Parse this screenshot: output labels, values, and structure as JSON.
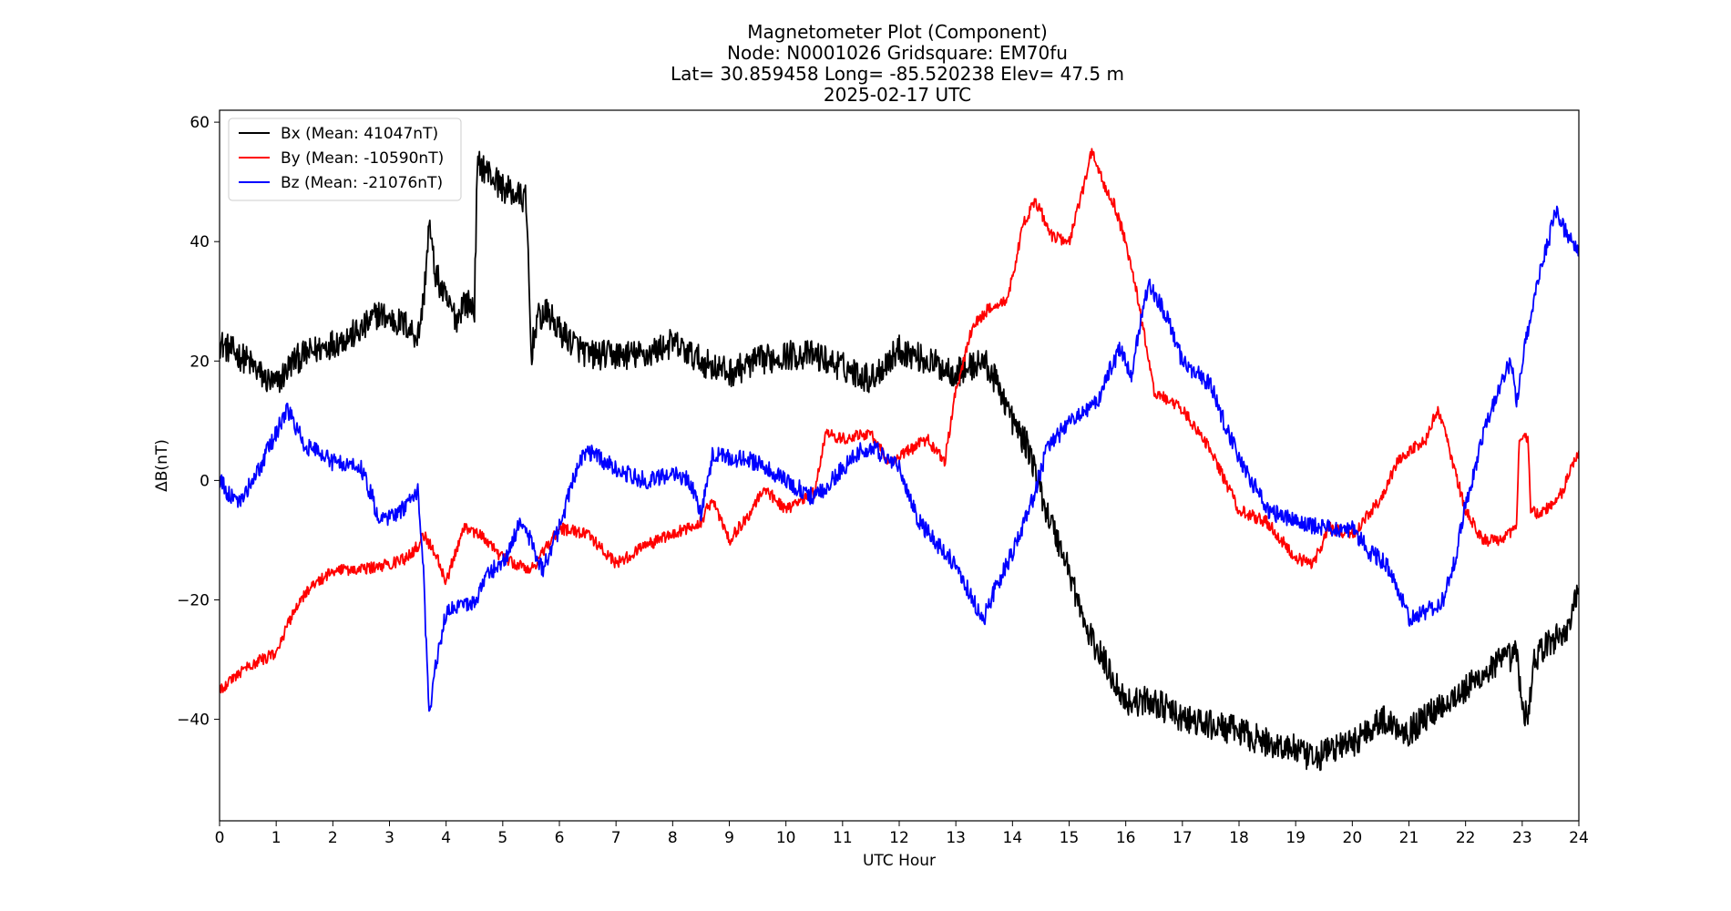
{
  "chart_data": {
    "type": "line",
    "title_lines": [
      "Magnetometer Plot (Component)",
      "Node:  N0001026     Gridsquare:  EM70fu",
      "Lat= 30.859458    Long= -85.520238    Elev= 47.5 m",
      "2025-02-17  UTC"
    ],
    "xlabel": "UTC Hour",
    "ylabel": "ΔB(nT)",
    "xlim": [
      0,
      24
    ],
    "ylim": [
      -57,
      62
    ],
    "x_ticks": [
      0,
      1,
      2,
      3,
      4,
      5,
      6,
      7,
      8,
      9,
      10,
      11,
      12,
      13,
      14,
      15,
      16,
      17,
      18,
      19,
      20,
      21,
      22,
      23,
      24
    ],
    "y_ticks": [
      60,
      40,
      20,
      0,
      -20,
      -40
    ],
    "y_tick_labels": [
      "60",
      "40",
      "20",
      "0",
      "−20",
      "−40"
    ],
    "grid": false,
    "legend_position": "top-left",
    "series": [
      {
        "name": "Bx (Mean: 41047nT)",
        "color": "#000000",
        "noise": 2.5,
        "points": [
          [
            0,
            23
          ],
          [
            0.5,
            20
          ],
          [
            0.8,
            17
          ],
          [
            1.0,
            16
          ],
          [
            1.3,
            20
          ],
          [
            1.5,
            21
          ],
          [
            2.0,
            23
          ],
          [
            2.5,
            25
          ],
          [
            2.8,
            28
          ],
          [
            3.0,
            27
          ],
          [
            3.3,
            26
          ],
          [
            3.5,
            24
          ],
          [
            3.6,
            30
          ],
          [
            3.7,
            43
          ],
          [
            3.8,
            35
          ],
          [
            4.0,
            30
          ],
          [
            4.2,
            27
          ],
          [
            4.3,
            30
          ],
          [
            4.5,
            29
          ],
          [
            4.55,
            52
          ],
          [
            4.6,
            53
          ],
          [
            5.0,
            49
          ],
          [
            5.4,
            47
          ],
          [
            5.45,
            38
          ],
          [
            5.5,
            21
          ],
          [
            5.6,
            27
          ],
          [
            5.8,
            28
          ],
          [
            6.0,
            25
          ],
          [
            6.5,
            21
          ],
          [
            7.0,
            21
          ],
          [
            7.5,
            21
          ],
          [
            8.0,
            23
          ],
          [
            8.5,
            20
          ],
          [
            9.0,
            18
          ],
          [
            9.5,
            20
          ],
          [
            10.0,
            21
          ],
          [
            10.5,
            21
          ],
          [
            11.0,
            19
          ],
          [
            11.5,
            17
          ],
          [
            12.0,
            22
          ],
          [
            12.5,
            20
          ],
          [
            13.0,
            18
          ],
          [
            13.5,
            20
          ],
          [
            13.8,
            15
          ],
          [
            14.0,
            10
          ],
          [
            14.3,
            5
          ],
          [
            14.6,
            -5
          ],
          [
            15.0,
            -15
          ],
          [
            15.3,
            -25
          ],
          [
            15.6,
            -30
          ],
          [
            16.0,
            -37
          ],
          [
            16.5,
            -37
          ],
          [
            17.0,
            -40
          ],
          [
            17.5,
            -41
          ],
          [
            18.0,
            -42
          ],
          [
            18.5,
            -44
          ],
          [
            19.0,
            -45
          ],
          [
            19.3,
            -47
          ],
          [
            19.6,
            -45
          ],
          [
            20.0,
            -44
          ],
          [
            20.5,
            -40
          ],
          [
            21.0,
            -42
          ],
          [
            21.5,
            -38
          ],
          [
            22.0,
            -35
          ],
          [
            22.5,
            -31
          ],
          [
            22.9,
            -29
          ],
          [
            23.0,
            -38
          ],
          [
            23.1,
            -40
          ],
          [
            23.2,
            -30
          ],
          [
            23.5,
            -27
          ],
          [
            23.8,
            -25
          ],
          [
            24.0,
            -18
          ]
        ]
      },
      {
        "name": "By (Mean: -10590nT)",
        "color": "#ff0000",
        "noise": 1.0,
        "points": [
          [
            0,
            -35
          ],
          [
            0.5,
            -31
          ],
          [
            1.0,
            -29
          ],
          [
            1.3,
            -22
          ],
          [
            1.5,
            -19
          ],
          [
            2.0,
            -15
          ],
          [
            2.5,
            -15
          ],
          [
            3.0,
            -14
          ],
          [
            3.3,
            -13
          ],
          [
            3.5,
            -11
          ],
          [
            3.6,
            -9
          ],
          [
            3.8,
            -12
          ],
          [
            4.0,
            -17
          ],
          [
            4.3,
            -8
          ],
          [
            4.6,
            -9
          ],
          [
            5.0,
            -13
          ],
          [
            5.5,
            -15
          ],
          [
            6.0,
            -8
          ],
          [
            6.5,
            -9
          ],
          [
            7.0,
            -14
          ],
          [
            7.5,
            -11
          ],
          [
            8.0,
            -9
          ],
          [
            8.5,
            -7
          ],
          [
            8.7,
            -3
          ],
          [
            9.0,
            -10
          ],
          [
            9.4,
            -5
          ],
          [
            9.6,
            -1
          ],
          [
            10.0,
            -5
          ],
          [
            10.5,
            -2
          ],
          [
            10.7,
            8
          ],
          [
            11.0,
            7
          ],
          [
            11.5,
            8
          ],
          [
            11.8,
            3
          ],
          [
            12.0,
            4
          ],
          [
            12.5,
            7
          ],
          [
            12.8,
            3
          ],
          [
            13.0,
            15
          ],
          [
            13.3,
            26
          ],
          [
            13.6,
            29
          ],
          [
            13.9,
            30
          ],
          [
            14.2,
            43
          ],
          [
            14.4,
            47
          ],
          [
            14.7,
            41
          ],
          [
            15.0,
            40
          ],
          [
            15.2,
            47
          ],
          [
            15.4,
            55
          ],
          [
            15.6,
            50
          ],
          [
            15.8,
            46
          ],
          [
            16.0,
            40
          ],
          [
            16.2,
            31
          ],
          [
            16.5,
            15
          ],
          [
            17.0,
            12
          ],
          [
            17.5,
            5
          ],
          [
            18.0,
            -5
          ],
          [
            18.5,
            -7
          ],
          [
            19.0,
            -13
          ],
          [
            19.3,
            -14
          ],
          [
            19.6,
            -8
          ],
          [
            20.0,
            -9
          ],
          [
            20.5,
            -3
          ],
          [
            20.8,
            3
          ],
          [
            21.0,
            5
          ],
          [
            21.3,
            7
          ],
          [
            21.5,
            12
          ],
          [
            21.7,
            6
          ],
          [
            21.8,
            2
          ],
          [
            22.0,
            -5
          ],
          [
            22.3,
            -10
          ],
          [
            22.6,
            -10
          ],
          [
            22.9,
            -8
          ],
          [
            22.95,
            7
          ],
          [
            23.1,
            7
          ],
          [
            23.15,
            -5
          ],
          [
            23.3,
            -6
          ],
          [
            23.7,
            -2
          ],
          [
            24.0,
            5
          ]
        ]
      },
      {
        "name": "Bz (Mean: -21076nT)",
        "color": "#0000ff",
        "noise": 1.5,
        "points": [
          [
            0,
            0
          ],
          [
            0.3,
            -4
          ],
          [
            0.6,
            0
          ],
          [
            0.9,
            6
          ],
          [
            1.2,
            12
          ],
          [
            1.5,
            6
          ],
          [
            2.0,
            3
          ],
          [
            2.5,
            2
          ],
          [
            2.7,
            -3
          ],
          [
            2.8,
            -7
          ],
          [
            3.2,
            -5
          ],
          [
            3.5,
            -2
          ],
          [
            3.6,
            -14
          ],
          [
            3.65,
            -28
          ],
          [
            3.7,
            -40
          ],
          [
            3.8,
            -32
          ],
          [
            4.0,
            -22
          ],
          [
            4.5,
            -20
          ],
          [
            4.8,
            -15
          ],
          [
            5.0,
            -14
          ],
          [
            5.3,
            -7
          ],
          [
            5.5,
            -10
          ],
          [
            5.7,
            -15
          ],
          [
            6.0,
            -8
          ],
          [
            6.3,
            2
          ],
          [
            6.5,
            5
          ],
          [
            7.0,
            2
          ],
          [
            7.5,
            0
          ],
          [
            8.0,
            1
          ],
          [
            8.3,
            0
          ],
          [
            8.5,
            -6
          ],
          [
            8.7,
            4
          ],
          [
            9.0,
            4
          ],
          [
            9.5,
            3
          ],
          [
            10.0,
            0
          ],
          [
            10.5,
            -3
          ],
          [
            11.0,
            2
          ],
          [
            11.3,
            5
          ],
          [
            11.6,
            5
          ],
          [
            12.0,
            2
          ],
          [
            12.3,
            -6
          ],
          [
            12.6,
            -10
          ],
          [
            13.0,
            -14
          ],
          [
            13.3,
            -20
          ],
          [
            13.5,
            -23
          ],
          [
            13.7,
            -18
          ],
          [
            14.0,
            -12
          ],
          [
            14.3,
            -5
          ],
          [
            14.6,
            5
          ],
          [
            15.0,
            10
          ],
          [
            15.5,
            13
          ],
          [
            15.7,
            18
          ],
          [
            15.9,
            22
          ],
          [
            16.1,
            18
          ],
          [
            16.4,
            33
          ],
          [
            16.7,
            28
          ],
          [
            17.0,
            20
          ],
          [
            17.5,
            16
          ],
          [
            17.8,
            8
          ],
          [
            18.0,
            4
          ],
          [
            18.5,
            -5
          ],
          [
            19.0,
            -7
          ],
          [
            19.5,
            -8
          ],
          [
            20.0,
            -8
          ],
          [
            20.3,
            -12
          ],
          [
            20.6,
            -14
          ],
          [
            20.8,
            -18
          ],
          [
            21.0,
            -23
          ],
          [
            21.3,
            -22
          ],
          [
            21.6,
            -20
          ],
          [
            21.8,
            -14
          ],
          [
            22.0,
            -4
          ],
          [
            22.3,
            7
          ],
          [
            22.6,
            16
          ],
          [
            22.8,
            20
          ],
          [
            22.9,
            13
          ],
          [
            23.0,
            20
          ],
          [
            23.2,
            30
          ],
          [
            23.4,
            38
          ],
          [
            23.6,
            45
          ],
          [
            23.8,
            41
          ],
          [
            24.0,
            38
          ]
        ]
      }
    ]
  }
}
